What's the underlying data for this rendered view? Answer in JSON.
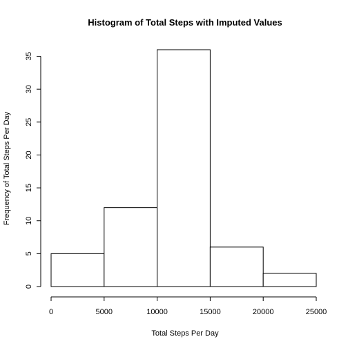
{
  "chart_data": {
    "type": "bar",
    "title": "Histogram of Total Steps with Imputed Values",
    "xlabel": "Total Steps Per Day",
    "ylabel": "Frequency of Total Steps Per Day",
    "bins": [
      {
        "x0": 0,
        "x1": 5000,
        "count": 5
      },
      {
        "x0": 5000,
        "x1": 10000,
        "count": 12
      },
      {
        "x0": 10000,
        "x1": 15000,
        "count": 36
      },
      {
        "x0": 15000,
        "x1": 20000,
        "count": 6
      },
      {
        "x0": 20000,
        "x1": 25000,
        "count": 2
      }
    ],
    "xlim": [
      0,
      25000
    ],
    "ylim": [
      0,
      36
    ],
    "xticks": [
      0,
      5000,
      10000,
      15000,
      20000,
      25000
    ],
    "yticks": [
      0,
      5,
      10,
      15,
      20,
      25,
      30,
      35
    ],
    "bar_fill": "#ffffff",
    "bar_stroke": "#000000",
    "grid": false,
    "legend": "none"
  }
}
